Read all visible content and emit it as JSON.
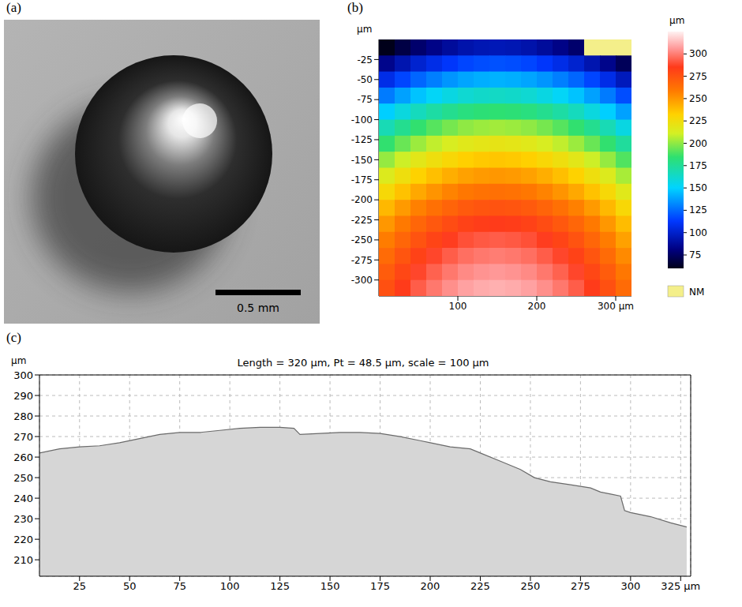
{
  "chart_data": [
    {
      "type": "image",
      "panel": "(a)",
      "scale_bar_label": "0.5 mm"
    },
    {
      "type": "heatmap",
      "panel": "(b)",
      "ylabel": "μm",
      "xlim": [
        0,
        320
      ],
      "ylim": [
        -320,
        0
      ],
      "xticks": [
        100,
        200,
        {
          "value": 300,
          "label": "300 μm"
        }
      ],
      "yticks": [
        -25,
        -50,
        -75,
        -100,
        -125,
        -150,
        -175,
        -200,
        -225,
        -250,
        -275,
        -300
      ],
      "x": [
        10,
        30,
        50,
        70,
        90,
        110,
        130,
        150,
        170,
        190,
        210,
        230,
        250,
        270,
        290,
        310
      ],
      "y": [
        -10,
        -30,
        -50,
        -70,
        -90,
        -110,
        -130,
        -150,
        -170,
        -190,
        -210,
        -230,
        -250,
        -270,
        -290,
        -310
      ],
      "values": [
        [
          60,
          69,
          77,
          83,
          88,
          92,
          94,
          95,
          94,
          92,
          88,
          83,
          77,
          null,
          null,
          null
        ],
        [
          84,
          93,
          101,
          107,
          112,
          116,
          118,
          119,
          118,
          116,
          112,
          107,
          101,
          93,
          84,
          73
        ],
        [
          107,
          116,
          124,
          130,
          135,
          139,
          141,
          142,
          141,
          139,
          135,
          130,
          124,
          116,
          107,
          96
        ],
        [
          129,
          138,
          146,
          152,
          157,
          161,
          163,
          164,
          163,
          161,
          157,
          152,
          146,
          138,
          129,
          118
        ],
        [
          149,
          158,
          166,
          172,
          177,
          181,
          183,
          184,
          183,
          181,
          177,
          172,
          166,
          158,
          149,
          138
        ],
        [
          168,
          177,
          185,
          191,
          196,
          200,
          202,
          203,
          202,
          200,
          196,
          191,
          185,
          177,
          168,
          157
        ],
        [
          185,
          194,
          202,
          208,
          213,
          217,
          219,
          220,
          219,
          217,
          213,
          208,
          202,
          194,
          185,
          174
        ],
        [
          201,
          210,
          218,
          224,
          229,
          233,
          235,
          236,
          235,
          233,
          229,
          224,
          218,
          210,
          201,
          190
        ],
        [
          215,
          224,
          232,
          238,
          243,
          247,
          249,
          250,
          249,
          247,
          243,
          238,
          232,
          224,
          215,
          204
        ],
        [
          228,
          237,
          245,
          251,
          256,
          260,
          262,
          263,
          262,
          260,
          256,
          251,
          245,
          237,
          228,
          217
        ],
        [
          240,
          249,
          257,
          263,
          268,
          272,
          274,
          275,
          274,
          272,
          268,
          263,
          257,
          249,
          240,
          229
        ],
        [
          250,
          259,
          267,
          273,
          278,
          282,
          284,
          285,
          284,
          282,
          278,
          273,
          267,
          259,
          250,
          239
        ],
        [
          258,
          267,
          275,
          281,
          286,
          290,
          292,
          293,
          292,
          290,
          286,
          281,
          275,
          267,
          258,
          247
        ],
        [
          265,
          274,
          282,
          288,
          293,
          297,
          299,
          300,
          299,
          297,
          293,
          288,
          282,
          274,
          265,
          254
        ],
        [
          271,
          280,
          288,
          294,
          299,
          303,
          305,
          306,
          305,
          303,
          299,
          294,
          288,
          280,
          271,
          260
        ],
        [
          276,
          285,
          293,
          299,
          304,
          308,
          310,
          311,
          310,
          308,
          304,
          299,
          293,
          285,
          276,
          265
        ]
      ],
      "colorbar": {
        "label": "μm",
        "range": [
          60,
          325
        ],
        "ticks": [
          75,
          100,
          125,
          150,
          175,
          200,
          225,
          250,
          275,
          300
        ]
      },
      "nan": {
        "label": "NM",
        "color": "#f4ef8a"
      }
    },
    {
      "type": "area",
      "panel": "(c)",
      "title": "Length = 320 μm, Pt = 48.5 μm, scale = 100 μm",
      "ylabel": "μm",
      "color": "#d6d6d6",
      "grid": true,
      "xlim": [
        5,
        330
      ],
      "ylim": [
        202,
        300
      ],
      "xticks": [
        25,
        50,
        75,
        100,
        125,
        150,
        175,
        200,
        225,
        250,
        275,
        300,
        {
          "value": 325,
          "label": "325 μm"
        }
      ],
      "yticks": [
        210,
        220,
        230,
        240,
        250,
        260,
        270,
        280,
        290,
        300
      ],
      "x": [
        5,
        15,
        25,
        35,
        45,
        55,
        65,
        75,
        85,
        95,
        105,
        115,
        125,
        132,
        135,
        145,
        155,
        165,
        175,
        185,
        195,
        200,
        210,
        220,
        225,
        235,
        245,
        252,
        260,
        270,
        280,
        285,
        290,
        295,
        297,
        300,
        310,
        320,
        328
      ],
      "values": [
        262,
        264,
        265,
        265.5,
        267,
        269,
        271,
        272,
        272,
        273,
        274,
        274.5,
        274.5,
        274,
        271,
        271.5,
        272,
        272,
        271.5,
        270,
        268,
        267,
        265,
        264,
        262,
        258,
        254,
        250,
        248,
        246.5,
        245,
        243,
        242,
        241,
        234,
        233,
        231,
        228,
        226
      ]
    }
  ]
}
